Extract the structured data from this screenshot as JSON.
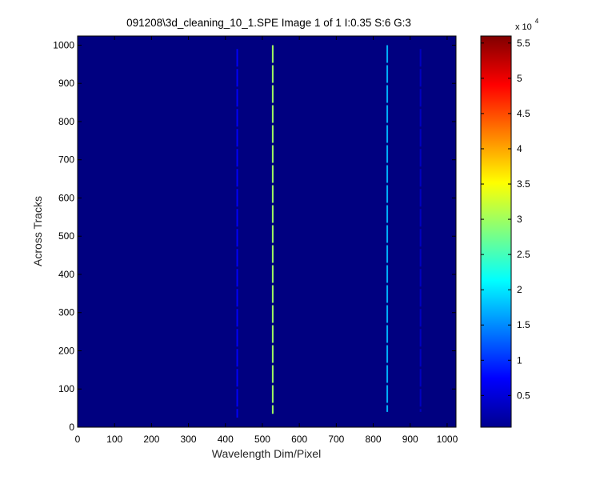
{
  "chart_data": {
    "type": "heatmap",
    "title": "091208\\3d_cleaning_10_1.SPE  Image 1 of 1  I:0.35  S:6  G:3",
    "xlabel": "Wavelength Dim/Pixel",
    "ylabel": "Across Tracks",
    "xlim": [
      0,
      1024
    ],
    "ylim": [
      0,
      1024
    ],
    "x_ticks": [
      0,
      100,
      200,
      300,
      400,
      500,
      600,
      700,
      800,
      900,
      1000
    ],
    "y_ticks": [
      0,
      100,
      200,
      300,
      400,
      500,
      600,
      700,
      800,
      900,
      1000
    ],
    "background_intensity": 500,
    "spectral_lines": [
      {
        "x": 432,
        "intensity": 7000,
        "y_range": [
          25,
          990
        ]
      },
      {
        "x": 528,
        "intensity": 30000,
        "y_range": [
          35,
          1000
        ]
      },
      {
        "x": 838,
        "intensity": 17000,
        "y_range": [
          40,
          1000
        ]
      },
      {
        "x": 928,
        "intensity": 4000,
        "y_range": [
          40,
          990
        ]
      }
    ],
    "colorbar": {
      "colormap": "jet",
      "range": [
        500,
        56000
      ],
      "ticks": [
        0.5,
        1,
        1.5,
        2,
        2.5,
        3,
        3.5,
        4,
        4.5,
        5,
        5.5
      ],
      "tick_labels": [
        "0.5",
        "1",
        "1.5",
        "2",
        "2.5",
        "3",
        "3.5",
        "4",
        "4.5",
        "5",
        "5.5"
      ],
      "multiplier_base": "x 10",
      "multiplier_exponent": "4"
    }
  }
}
